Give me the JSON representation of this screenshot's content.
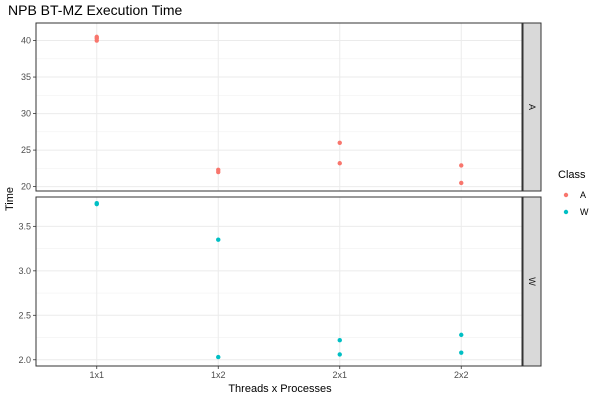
{
  "chart_data": {
    "type": "scatter",
    "title": "NPB BT-MZ Execution Time",
    "xlabel": "Threads x Processes",
    "ylabel": "Time",
    "categories": [
      "1x1",
      "1x2",
      "2x1",
      "2x2"
    ],
    "facets": [
      {
        "label": "A",
        "ylim": [
          19.4,
          42.4
        ],
        "yticks": [
          20,
          25,
          30,
          35,
          40
        ],
        "yticklabels": [
          "20",
          "25",
          "30",
          "35",
          "40"
        ],
        "series": [
          {
            "name": "A",
            "points": [
              {
                "x": "1x1",
                "y": 40.0
              },
              {
                "x": "1x1",
                "y": 40.3
              },
              {
                "x": "1x1",
                "y": 40.5
              },
              {
                "x": "1x2",
                "y": 22.0
              },
              {
                "x": "1x2",
                "y": 22.3
              },
              {
                "x": "2x1",
                "y": 23.2
              },
              {
                "x": "2x1",
                "y": 26.0
              },
              {
                "x": "2x2",
                "y": 20.5
              },
              {
                "x": "2x2",
                "y": 22.9
              }
            ]
          }
        ]
      },
      {
        "label": "W",
        "ylim": [
          1.93,
          3.83
        ],
        "yticks": [
          2.0,
          2.5,
          3.0,
          3.5
        ],
        "yticklabels": [
          "2.0",
          "2.5",
          "3.0",
          "3.5"
        ],
        "series": [
          {
            "name": "W",
            "points": [
              {
                "x": "1x1",
                "y": 3.76
              },
              {
                "x": "1x1",
                "y": 3.75
              },
              {
                "x": "1x2",
                "y": 2.03
              },
              {
                "x": "1x2",
                "y": 3.35
              },
              {
                "x": "2x1",
                "y": 2.06
              },
              {
                "x": "2x1",
                "y": 2.22
              },
              {
                "x": "2x2",
                "y": 2.08
              },
              {
                "x": "2x2",
                "y": 2.28
              }
            ]
          }
        ]
      }
    ],
    "legend": {
      "title": "Class",
      "position": "right",
      "items": [
        {
          "label": "A",
          "color": "#F8766D"
        },
        {
          "label": "W",
          "color": "#00BFC4"
        }
      ]
    },
    "grid": true
  }
}
